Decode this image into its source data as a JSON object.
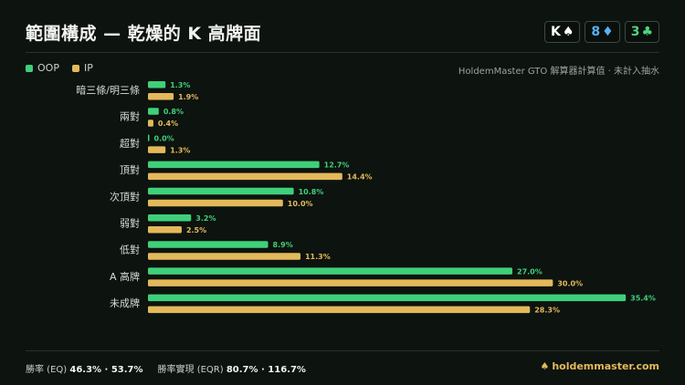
{
  "header": {
    "title": "範圍構成 — 乾燥的 K 高牌面"
  },
  "board": [
    {
      "rank": "K",
      "suit": "♠",
      "color": "#ffffff"
    },
    {
      "rank": "8",
      "suit": "♦",
      "color": "#5ab0f0"
    },
    {
      "rank": "3",
      "suit": "♣",
      "color": "#4fd47d"
    }
  ],
  "legend": {
    "oop": {
      "label": "OOP",
      "color": "#3fcf7a"
    },
    "ip": {
      "label": "IP",
      "color": "#e3b95a"
    }
  },
  "source_note": "HoldemMaster GTO 解算器計算值 · 未計入抽水",
  "chart_data": {
    "type": "bar",
    "orientation": "horizontal",
    "categories": [
      "暗三條/明三條",
      "兩對",
      "超對",
      "頂對",
      "次頂對",
      "弱對",
      "低對",
      "A 高牌",
      "未成牌"
    ],
    "series": [
      {
        "name": "OOP",
        "values": [
          1.3,
          0.8,
          0.0,
          12.7,
          10.8,
          3.2,
          8.9,
          27.0,
          35.4
        ],
        "color": "#3fcf7a"
      },
      {
        "name": "IP",
        "values": [
          1.9,
          0.4,
          1.3,
          14.4,
          10.0,
          2.5,
          11.3,
          30.0,
          28.3
        ],
        "color": "#e3b95a"
      }
    ],
    "value_suffix": "%",
    "xlim": [
      0,
      36
    ]
  },
  "footer": {
    "eq_label": "勝率 (EQ)",
    "eq_values": "46.3% · 53.7%",
    "eqr_label": "勝率實現 (EQR)",
    "eqr_values": "80.7% · 116.7%",
    "brand_icon": "♠",
    "brand": "holdemmaster.com"
  }
}
